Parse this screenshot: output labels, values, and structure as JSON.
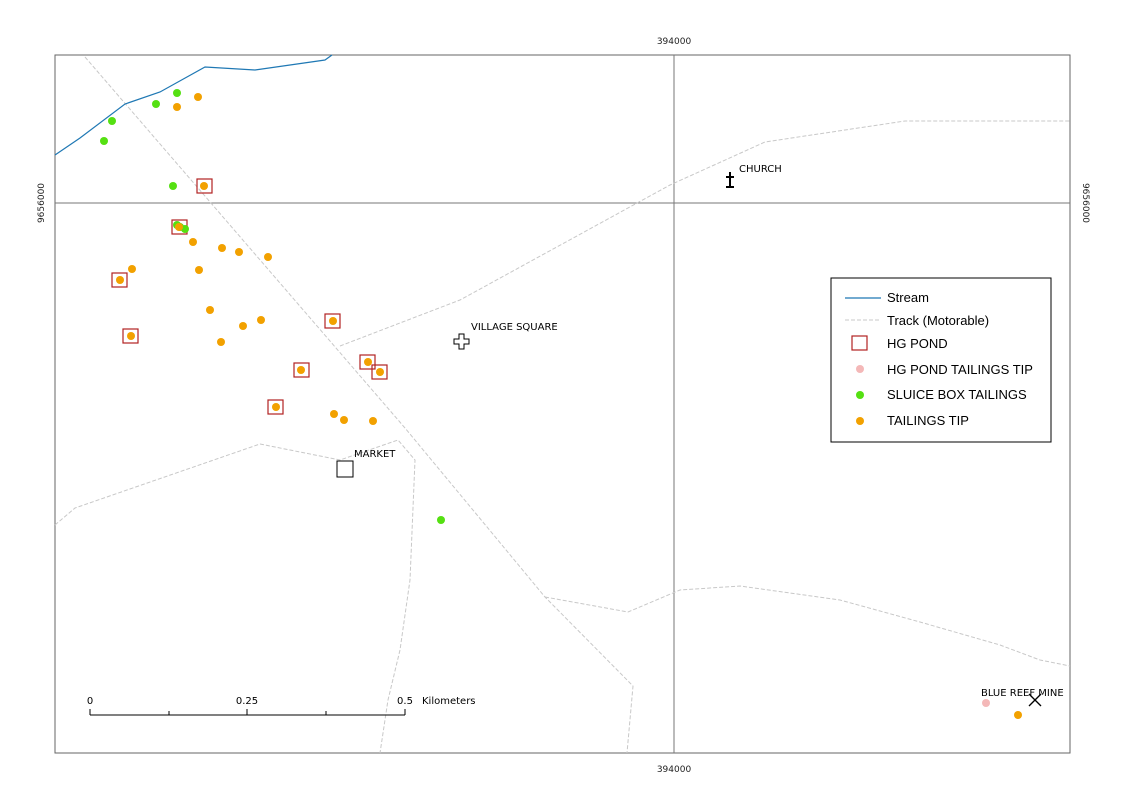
{
  "grid": {
    "easting_label": "394000",
    "northing_label": "9656000"
  },
  "colors": {
    "stream": "#1f78b4",
    "track": "#c8c8c8",
    "hg_pond": "#b22222",
    "hg_pond_tailings_tip": "#f4b8b8",
    "sluice_box_tailings": "#55e012",
    "tailings_tip": "#f2a100"
  },
  "places": [
    {
      "name": "CHURCH",
      "icon": "cross-icon"
    },
    {
      "name": "VILLAGE SQUARE",
      "icon": "plus-outline-icon"
    },
    {
      "name": "MARKET",
      "icon": "square-outline-icon"
    },
    {
      "name": "BLUE REEF MINE",
      "icon": "crossed-hammers-icon"
    }
  ],
  "legend": {
    "items": [
      {
        "label": "Stream",
        "symbol": "line-stream"
      },
      {
        "label": "Track (Motorable)",
        "symbol": "line-track"
      },
      {
        "label": "HG POND",
        "symbol": "square-hg"
      },
      {
        "label": "HG POND TAILINGS TIP",
        "symbol": "dot-hgtip"
      },
      {
        "label": "SLUICE BOX TAILINGS",
        "symbol": "dot-sluice"
      },
      {
        "label": "TAILINGS TIP",
        "symbol": "dot-tail"
      }
    ]
  },
  "scale_bar": {
    "ticks": [
      "0",
      "0.25",
      "0.5"
    ],
    "unit": "Kilometers"
  }
}
